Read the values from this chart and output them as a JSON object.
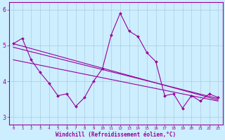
{
  "x": [
    0,
    1,
    2,
    3,
    4,
    5,
    6,
    7,
    8,
    9,
    10,
    11,
    12,
    13,
    14,
    15,
    16,
    17,
    18,
    19,
    20,
    21,
    22,
    23
  ],
  "line_main": [
    5.05,
    5.2,
    4.6,
    4.25,
    3.95,
    3.6,
    3.65,
    3.3,
    3.55,
    4.0,
    4.35,
    5.3,
    5.9,
    5.4,
    5.25,
    4.8,
    4.55,
    3.6,
    3.65,
    3.25,
    3.6,
    3.45,
    3.65,
    3.55
  ],
  "trend1_start": 5.05,
  "trend1_end": 3.48,
  "trend2_start": 4.95,
  "trend2_end": 3.52,
  "trend3_start": 4.6,
  "trend3_end": 3.45,
  "color": "#990099",
  "bg_color": "#cceeff",
  "grid_color": "#aaccdd",
  "xlabel": "Windchill (Refroidissement éolien,°C)",
  "xlim": [
    -0.5,
    23.5
  ],
  "ylim": [
    2.8,
    6.2
  ],
  "yticks": [
    3,
    4,
    5,
    6
  ],
  "xticks": [
    0,
    1,
    2,
    3,
    4,
    5,
    6,
    7,
    8,
    9,
    10,
    11,
    12,
    13,
    14,
    15,
    16,
    17,
    18,
    19,
    20,
    21,
    22,
    23
  ]
}
